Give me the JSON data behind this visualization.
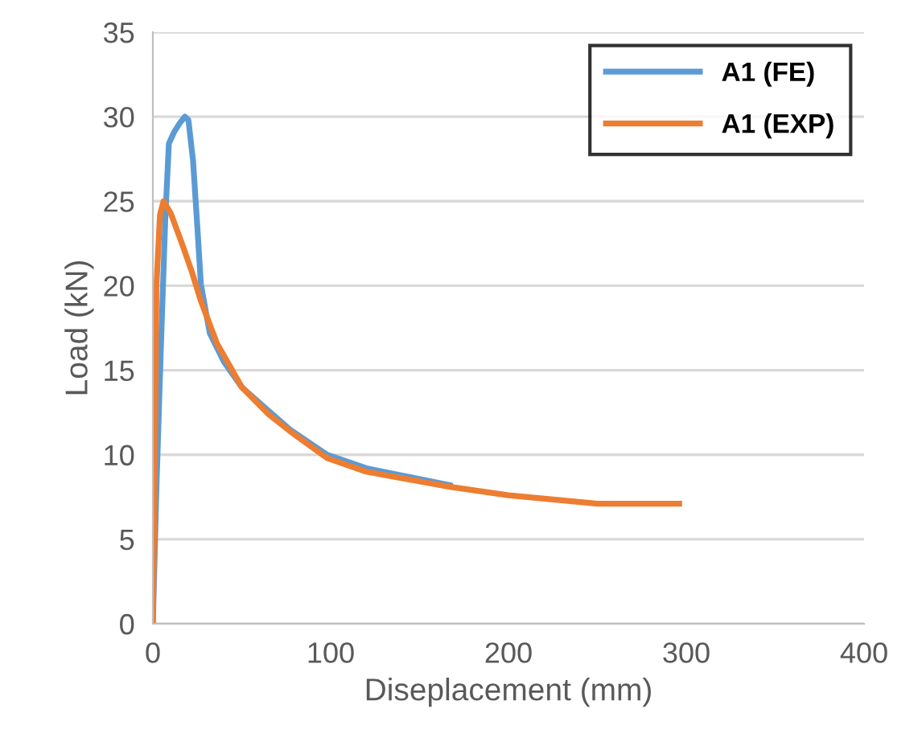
{
  "chart_data": {
    "type": "line",
    "xlabel": "Diseplacement (mm)",
    "ylabel": "Load (kN)",
    "xlim": [
      0,
      400
    ],
    "xticks": [
      0,
      100,
      200,
      300,
      400
    ],
    "ylim": [
      0,
      35
    ],
    "yticks": [
      0,
      5,
      10,
      15,
      20,
      25,
      30,
      35
    ],
    "grid": "y",
    "legend": "top right",
    "marker": "none",
    "line_style": "solid",
    "series": [
      {
        "name": "A1 (FE)",
        "color": "#5b9bd5",
        "x": [
          0,
          2,
          4.5,
          7,
          9,
          12,
          15,
          18,
          20,
          22.6,
          25,
          27,
          32,
          40,
          50,
          65,
          77,
          98,
          120,
          167
        ],
        "values": [
          0,
          8,
          16.3,
          24,
          28.4,
          29.1,
          29.6,
          30.0,
          29.8,
          27.4,
          23.5,
          20.1,
          17.2,
          15.5,
          14.0,
          12.6,
          11.5,
          10.0,
          9.2,
          8.2
        ]
      },
      {
        "name": "A1 (EXP)",
        "color": "#ed7d31",
        "x": [
          0,
          1,
          2,
          4,
          6,
          10,
          16,
          22,
          27,
          36,
          50,
          65,
          77,
          98,
          120,
          167,
          200,
          250,
          296
        ],
        "values": [
          0,
          8.4,
          20,
          24.2,
          25.0,
          24.3,
          22.6,
          20.8,
          19.1,
          16.6,
          14.0,
          12.4,
          11.4,
          9.8,
          9.0,
          8.1,
          7.6,
          7.1,
          7.1
        ]
      }
    ]
  }
}
